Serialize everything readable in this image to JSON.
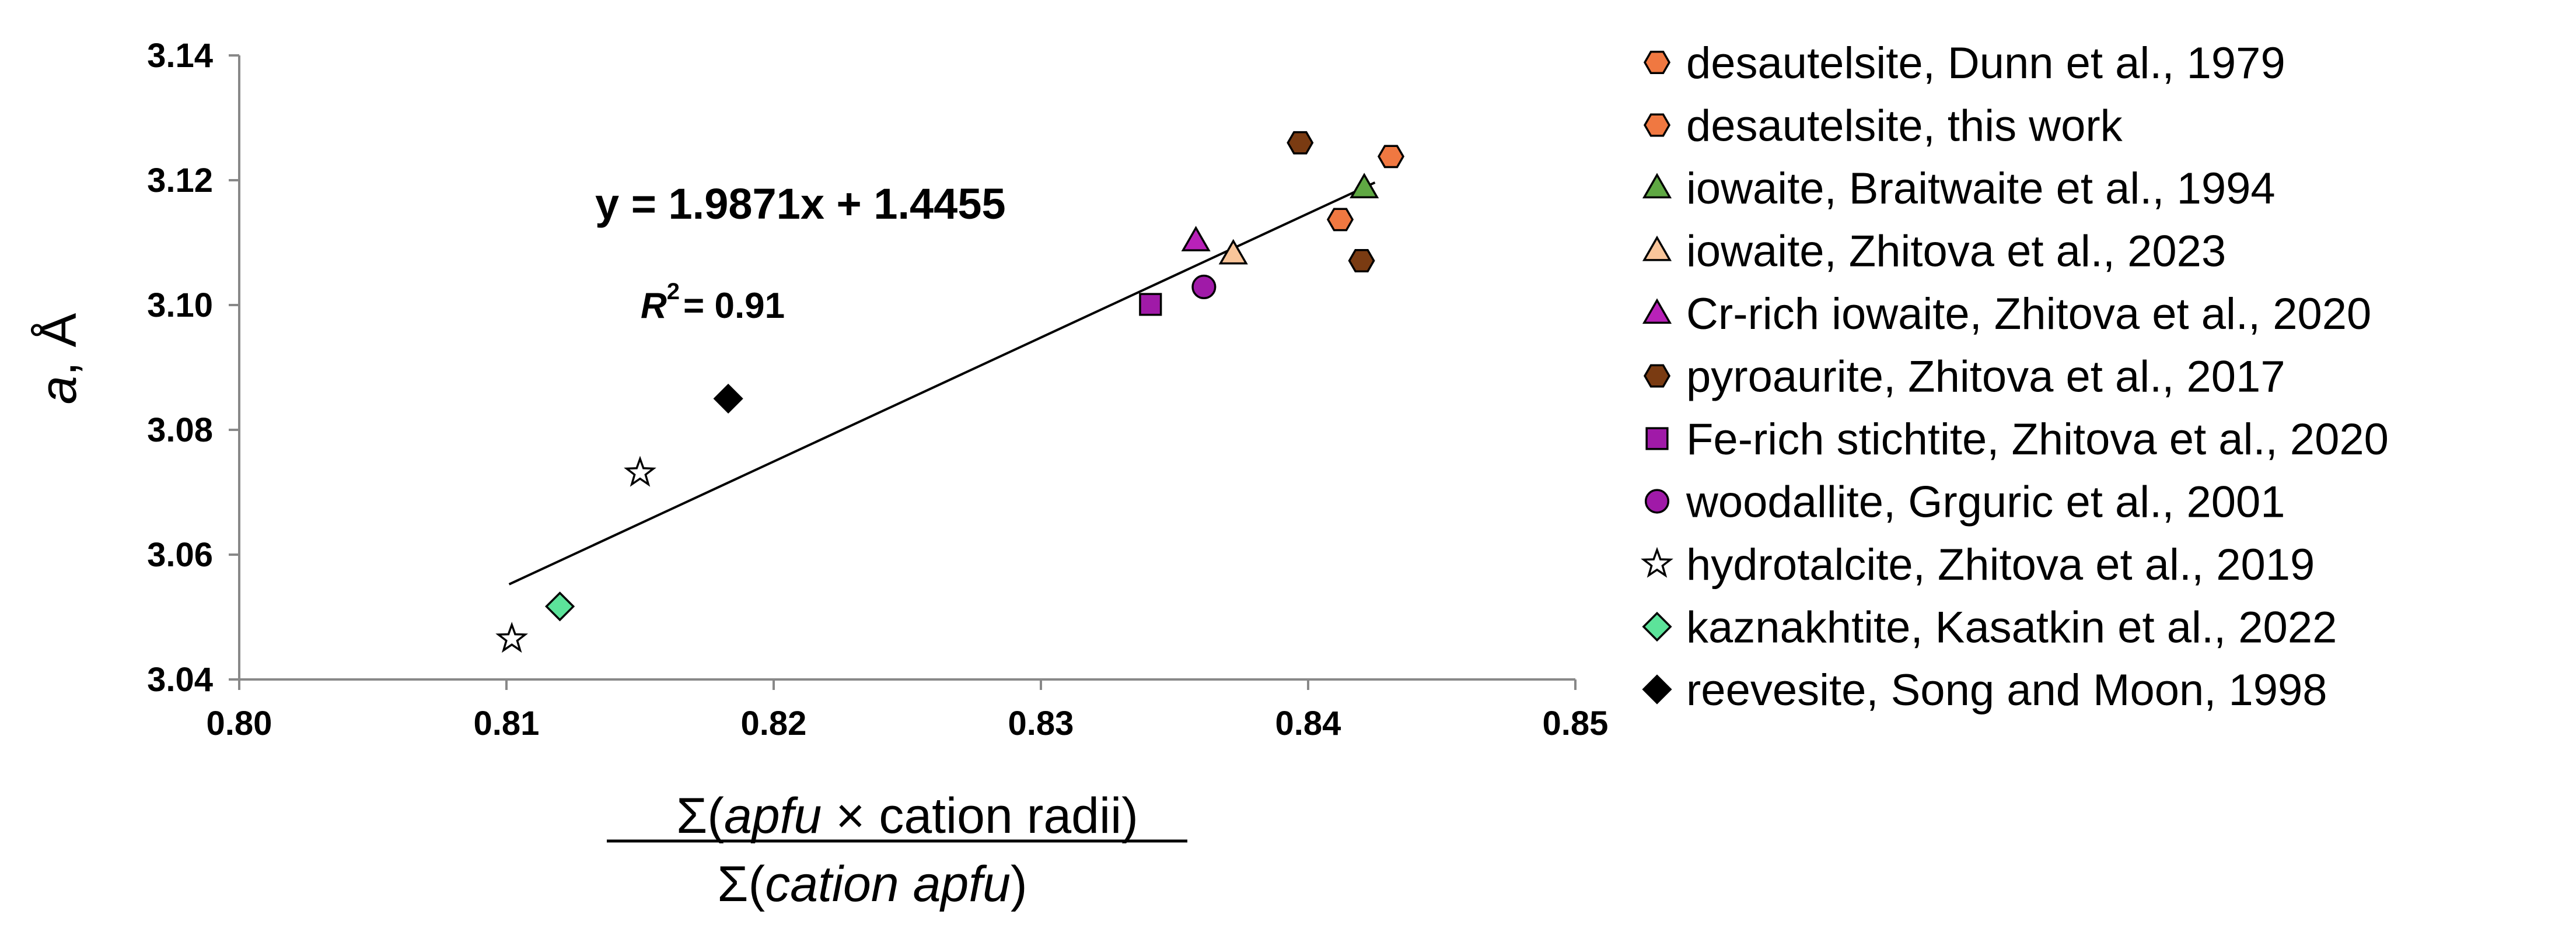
{
  "chart_data": {
    "type": "scatter",
    "title": "",
    "xlabel": {
      "numerator_prefix": "Σ(",
      "numerator_italic": "apfu",
      "numerator_suffix": " × cation radii)",
      "denominator_prefix": "Σ(",
      "denominator_italic": "cation apfu",
      "denominator_suffix": ")"
    },
    "ylabel": {
      "italic": "a",
      "rest": ", Å"
    },
    "xlim": [
      0.8,
      0.85
    ],
    "ylim": [
      3.04,
      3.14
    ],
    "x_ticks": [
      "0.80",
      "0.81",
      "0.82",
      "0.83",
      "0.84",
      "0.85"
    ],
    "y_ticks": [
      "3.04",
      "3.06",
      "3.08",
      "3.10",
      "3.12",
      "3.14"
    ],
    "grid": false,
    "legend_position": "right",
    "trendline": {
      "slope": 1.9871,
      "intercept": 1.4455,
      "x_range": [
        0.8101,
        0.8425
      ],
      "equation": "y = 1.9871x + 1.4455",
      "r2_prefix": "R",
      "r2_exp": "2",
      "r2_value": "= 0.91",
      "color": "#000000"
    },
    "series": [
      {
        "name": "desautelsite, Dunn et al., 1979",
        "marker": "hexagon",
        "color": "#F07841",
        "points": [
          [
            0.8431,
            3.1238
          ]
        ]
      },
      {
        "name": "desautelsite, this work",
        "marker": "hexagon",
        "color": "#F07841",
        "points": [
          [
            0.8412,
            3.1137
          ]
        ]
      },
      {
        "name": "iowaite, Braitwaite et al., 1994",
        "marker": "triangle",
        "color": "#5FA843",
        "points": [
          [
            0.8421,
            3.1188
          ]
        ]
      },
      {
        "name": "iowaite, Zhitova et al., 2023",
        "marker": "triangle",
        "color": "#F9C59A",
        "points": [
          [
            0.8372,
            3.1082
          ]
        ]
      },
      {
        "name": "Cr-rich iowaite, Zhitova et al., 2020",
        "marker": "triangle",
        "color": "#B821B8",
        "points": [
          [
            0.8358,
            3.1103
          ]
        ]
      },
      {
        "name": "pyroaurite, Zhitova et al., 2017",
        "marker": "hexagon",
        "color": "#7A3B12",
        "points": [
          [
            0.8397,
            3.126
          ],
          [
            0.842,
            3.1071
          ]
        ]
      },
      {
        "name": "Fe-rich stichtite, Zhitova et al., 2020",
        "marker": "square",
        "color": "#A01AA8",
        "points": [
          [
            0.8341,
            3.1001
          ]
        ]
      },
      {
        "name": "woodallite, Grguric et al., 2001",
        "marker": "circle",
        "color": "#A01AA8",
        "points": [
          [
            0.8361,
            3.1029
          ]
        ]
      },
      {
        "name": "hydrotalcite, Zhitova et al., 2019",
        "marker": "star",
        "color": "#FFFFFF",
        "points": [
          [
            0.8102,
            3.0465
          ],
          [
            0.815,
            3.0731
          ]
        ]
      },
      {
        "name": "kaznakhtite, Kasatkin et al., 2022",
        "marker": "diamond",
        "color": "#5CE39A",
        "points": [
          [
            0.812,
            3.0517
          ]
        ]
      },
      {
        "name": "reevesite, Song and Moon, 1998",
        "marker": "diamond",
        "color": "#000000",
        "points": [
          [
            0.8183,
            3.085
          ]
        ]
      }
    ]
  }
}
